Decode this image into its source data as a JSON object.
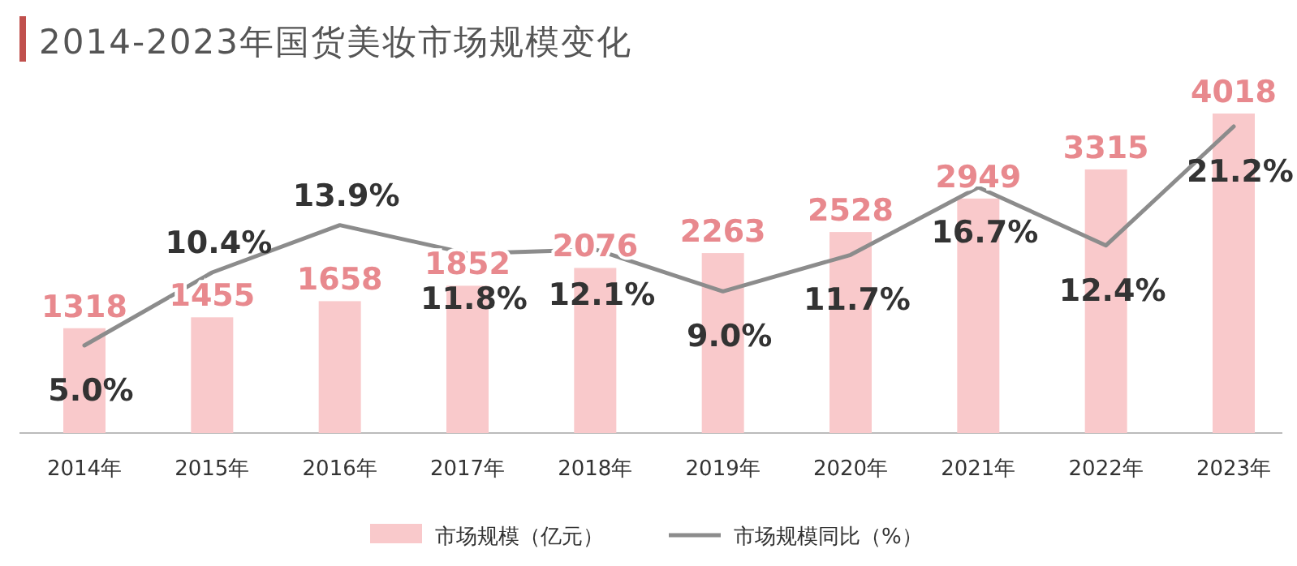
{
  "chart_data": {
    "type": "bar",
    "title": "2014-2023年国货美妆市场规模变化",
    "categories": [
      "2014年",
      "2015年",
      "2016年",
      "2017年",
      "2018年",
      "2019年",
      "2020年",
      "2021年",
      "2022年",
      "2023年"
    ],
    "series": [
      {
        "name": "市场规模（亿元）",
        "type": "bar",
        "color": "#f9c9cb",
        "values": [
          1318,
          1455,
          1658,
          1852,
          2076,
          2263,
          2528,
          2949,
          3315,
          4018
        ],
        "value_labels": [
          "1318",
          "1455",
          "1658",
          "1852",
          "2076",
          "2263",
          "2528",
          "2949",
          "3315",
          "4018"
        ]
      },
      {
        "name": "市场规模同比（%）",
        "type": "line",
        "axis": "y2",
        "color": "#8c8c8c",
        "values": [
          5.0,
          10.4,
          13.9,
          11.8,
          12.1,
          9.0,
          11.7,
          16.7,
          12.4,
          21.2
        ],
        "value_labels": [
          "5.0%",
          "10.4%",
          "13.9%",
          "11.8%",
          "12.1%",
          "9.0%",
          "11.7%",
          "16.7%",
          "12.4%",
          "21.2%"
        ]
      }
    ],
    "data_labels": true,
    "legend": "bottom"
  }
}
